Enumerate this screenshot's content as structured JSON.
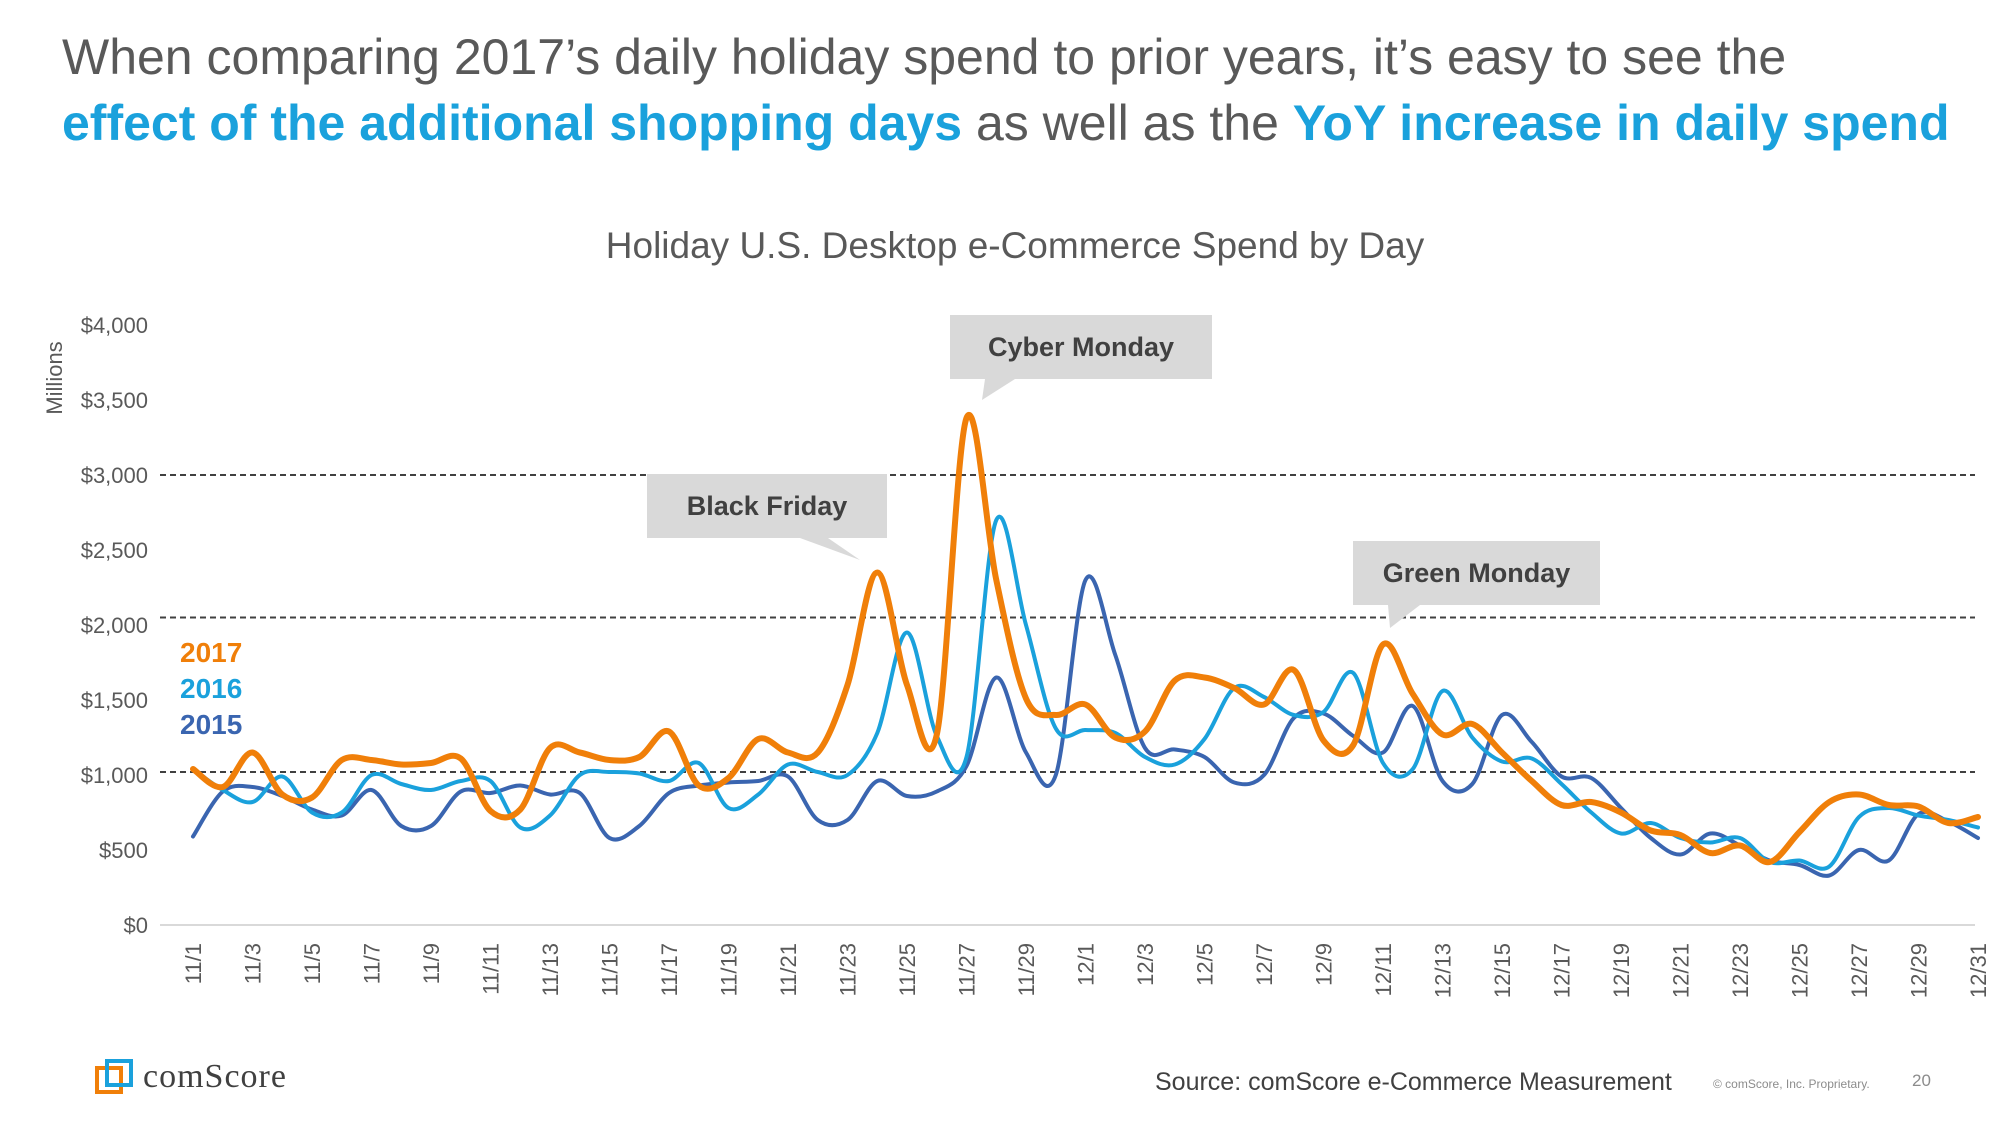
{
  "headline": {
    "line1": "When comparing 2017’s daily holiday spend to prior years, it’s easy to see the",
    "hl1": "effect of the additional shopping days",
    "mid": " as well as the ",
    "hl2": "YoY increase in daily spend"
  },
  "chart_data": {
    "type": "line",
    "title": "Holiday U.S. Desktop e-Commerce Spend by Day",
    "ylabel": "Millions",
    "xlabel": "",
    "ylim": [
      0,
      4000
    ],
    "y_ticks": [
      "$0",
      "$500",
      "$1,000",
      "$1,500",
      "$2,000",
      "$2,500",
      "$3,000",
      "$3,500",
      "$4,000"
    ],
    "y_tick_values": [
      0,
      500,
      1000,
      1500,
      2000,
      2500,
      3000,
      3500,
      4000
    ],
    "x_tick_labels": [
      "11/1",
      "11/3",
      "11/5",
      "11/7",
      "11/9",
      "11/11",
      "11/13",
      "11/15",
      "11/17",
      "11/19",
      "11/21",
      "11/23",
      "11/25",
      "11/27",
      "11/29",
      "12/1",
      "12/3",
      "12/5",
      "12/7",
      "12/9",
      "12/11",
      "12/13",
      "12/15",
      "12/17",
      "12/19",
      "12/21",
      "12/23",
      "12/25",
      "12/27",
      "12/29",
      "12/31"
    ],
    "reference_lines": [
      3000,
      2050,
      1020
    ],
    "grid": false,
    "legend_placement": "left",
    "series": [
      {
        "name": "2017",
        "color": "#f07f09",
        "values": [
          1040,
          920,
          1150,
          870,
          850,
          1100,
          1100,
          1070,
          1080,
          1110,
          760,
          770,
          1180,
          1150,
          1100,
          1120,
          1290,
          930,
          980,
          1240,
          1150,
          1150,
          1600,
          2350,
          1600,
          1270,
          3380,
          2300,
          1510,
          1400,
          1470,
          1250,
          1290,
          1630,
          1650,
          1580,
          1470,
          1700,
          1230,
          1200,
          1870,
          1540,
          1270,
          1340,
          1150,
          960,
          800,
          820,
          750,
          630,
          600,
          480,
          530,
          420,
          620,
          820,
          870,
          800,
          790,
          680,
          720
        ]
      },
      {
        "name": "2016",
        "color": "#1aa1dc",
        "values": [
          1040,
          900,
          820,
          990,
          750,
          750,
          1000,
          940,
          900,
          960,
          960,
          650,
          730,
          1000,
          1020,
          1010,
          960,
          1080,
          780,
          870,
          1070,
          1020,
          1000,
          1280,
          1950,
          1260,
          1120,
          2700,
          2000,
          1310,
          1300,
          1280,
          1120,
          1070,
          1240,
          1580,
          1520,
          1400,
          1420,
          1680,
          1080,
          1040,
          1560,
          1250,
          1090,
          1110,
          940,
          750,
          610,
          680,
          580,
          550,
          580,
          420,
          430,
          390,
          720,
          780,
          730,
          700,
          650
        ]
      },
      {
        "name": "2015",
        "color": "#3a65b0",
        "values": [
          590,
          890,
          920,
          860,
          770,
          730,
          900,
          660,
          660,
          890,
          880,
          930,
          870,
          880,
          580,
          660,
          880,
          930,
          950,
          960,
          990,
          700,
          700,
          960,
          860,
          890,
          1060,
          1650,
          1150,
          1000,
          2300,
          1800,
          1180,
          1170,
          1120,
          950,
          1000,
          1380,
          1410,
          1260,
          1150,
          1460,
          960,
          940,
          1400,
          1220,
          990,
          980,
          780,
          580,
          470,
          610,
          530,
          430,
          400,
          330,
          500,
          430,
          740,
          690,
          580
        ]
      }
    ],
    "annotations": [
      {
        "text": "Black Friday"
      },
      {
        "text": "Cyber Monday"
      },
      {
        "text": "Green Monday"
      }
    ]
  },
  "footer": {
    "logo": "comScore",
    "source": "Source: comScore e-Commerce Measurement",
    "copyright": "© comScore, Inc. Proprietary.",
    "page": "20"
  }
}
